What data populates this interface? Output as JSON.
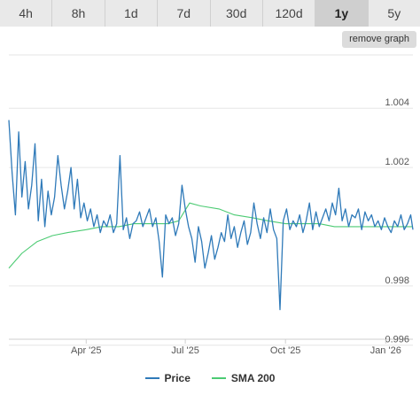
{
  "range_tabs": [
    {
      "label": "4h"
    },
    {
      "label": "8h"
    },
    {
      "label": "1d"
    },
    {
      "label": "7d"
    },
    {
      "label": "30d"
    },
    {
      "label": "120d"
    },
    {
      "label": "1y",
      "active": true
    },
    {
      "label": "5y"
    }
  ],
  "remove_graph_label": "remove graph",
  "colors": {
    "price": "#2f7ab9",
    "sma": "#4ccb73",
    "grid": "#e6e6e6",
    "tick_text": "#555555"
  },
  "chart_data": {
    "type": "line",
    "title": "",
    "xlabel": "",
    "ylabel": "",
    "ylim": [
      0.9962,
      1.0058
    ],
    "x_ticks": [
      {
        "date": "2025-04-01",
        "label": "Apr '25"
      },
      {
        "date": "2025-07-01",
        "label": "Jul '25"
      },
      {
        "date": "2025-10-01",
        "label": "Oct '25"
      },
      {
        "date": "2026-01-01",
        "label": "Jan '26"
      }
    ],
    "y_ticks": [
      {
        "value": 1.004,
        "label": "1.004"
      },
      {
        "value": 1.002,
        "label": "1.002"
      },
      {
        "value": 0.998,
        "label": "0.998"
      },
      {
        "value": 0.996,
        "label": "0.996"
      }
    ],
    "x_range": [
      "2025-01-20",
      "2026-01-26"
    ],
    "grid": true,
    "legend_position": "bottom",
    "series": [
      {
        "name": "Price",
        "x": [
          "2025-01-20",
          "2025-01-23",
          "2025-01-26",
          "2025-01-29",
          "2025-02-01",
          "2025-02-04",
          "2025-02-07",
          "2025-02-10",
          "2025-02-13",
          "2025-02-16",
          "2025-02-19",
          "2025-02-22",
          "2025-02-25",
          "2025-02-28",
          "2025-03-03",
          "2025-03-06",
          "2025-03-09",
          "2025-03-12",
          "2025-03-15",
          "2025-03-18",
          "2025-03-21",
          "2025-03-24",
          "2025-03-27",
          "2025-03-30",
          "2025-04-02",
          "2025-04-05",
          "2025-04-08",
          "2025-04-11",
          "2025-04-14",
          "2025-04-17",
          "2025-04-20",
          "2025-04-23",
          "2025-04-26",
          "2025-04-29",
          "2025-05-02",
          "2025-05-05",
          "2025-05-08",
          "2025-05-11",
          "2025-05-14",
          "2025-05-17",
          "2025-05-20",
          "2025-05-23",
          "2025-05-26",
          "2025-05-29",
          "2025-06-01",
          "2025-06-04",
          "2025-06-07",
          "2025-06-10",
          "2025-06-13",
          "2025-06-16",
          "2025-06-19",
          "2025-06-22",
          "2025-06-25",
          "2025-06-28",
          "2025-07-01",
          "2025-07-04",
          "2025-07-07",
          "2025-07-10",
          "2025-07-13",
          "2025-07-16",
          "2025-07-19",
          "2025-07-22",
          "2025-07-25",
          "2025-07-28",
          "2025-07-31",
          "2025-08-03",
          "2025-08-06",
          "2025-08-09",
          "2025-08-12",
          "2025-08-15",
          "2025-08-18",
          "2025-08-21",
          "2025-08-24",
          "2025-08-27",
          "2025-08-30",
          "2025-09-02",
          "2025-09-05",
          "2025-09-08",
          "2025-09-11",
          "2025-09-14",
          "2025-09-17",
          "2025-09-20",
          "2025-09-23",
          "2025-09-26",
          "2025-09-29",
          "2025-10-02",
          "2025-10-05",
          "2025-10-08",
          "2025-10-11",
          "2025-10-14",
          "2025-10-17",
          "2025-10-20",
          "2025-10-23",
          "2025-10-26",
          "2025-10-29",
          "2025-11-01",
          "2025-11-04",
          "2025-11-07",
          "2025-11-10",
          "2025-11-13",
          "2025-11-16",
          "2025-11-19",
          "2025-11-22",
          "2025-11-25",
          "2025-11-28",
          "2025-12-01",
          "2025-12-04",
          "2025-12-07",
          "2025-12-10",
          "2025-12-13",
          "2025-12-16",
          "2025-12-19",
          "2025-12-22",
          "2025-12-25",
          "2025-12-28",
          "2025-12-31",
          "2026-01-03",
          "2026-01-06",
          "2026-01-09",
          "2026-01-12",
          "2026-01-15",
          "2026-01-18",
          "2026-01-21",
          "2026-01-24",
          "2026-01-26"
        ],
        "y": [
          1.0036,
          1.0018,
          1.0004,
          1.0032,
          1.001,
          1.0022,
          1.0006,
          1.0014,
          1.0028,
          1.0002,
          1.0016,
          1.0,
          1.0012,
          1.0004,
          1.001,
          1.0024,
          1.0014,
          1.0006,
          1.0012,
          1.002,
          1.0006,
          1.0016,
          1.0003,
          1.0008,
          1.0002,
          1.0006,
          1.0,
          1.0004,
          0.9998,
          1.0002,
          1.0,
          1.0004,
          0.9998,
          1.0001,
          1.0024,
          0.9999,
          1.0003,
          0.9996,
          1.0001,
          1.0002,
          1.0005,
          1.0,
          1.0003,
          1.0006,
          1.0,
          1.0003,
          0.9995,
          0.9983,
          1.0004,
          1.0001,
          1.0003,
          0.9997,
          1.0001,
          1.0014,
          1.0006,
          1.0,
          0.9996,
          0.9988,
          1.0,
          0.9995,
          0.9986,
          0.9991,
          0.9997,
          0.9989,
          0.9993,
          0.9998,
          0.9995,
          1.0004,
          0.9996,
          1.0,
          0.9993,
          0.9998,
          1.0002,
          0.9994,
          0.9998,
          1.0008,
          1.0001,
          0.9996,
          1.0003,
          0.9998,
          1.0006,
          0.9999,
          0.9996,
          0.9972,
          1.0002,
          1.0006,
          0.9999,
          1.0002,
          1.0,
          1.0004,
          0.9998,
          1.0002,
          1.0008,
          0.9999,
          1.0005,
          1.0,
          1.0003,
          1.0006,
          1.0002,
          1.0008,
          1.0004,
          1.0013,
          1.0002,
          1.0006,
          1.0,
          1.0004,
          1.0003,
          1.0006,
          0.9999,
          1.0005,
          1.0002,
          1.0004,
          1.0,
          1.0002,
          0.9999,
          1.0003,
          1.0,
          0.9998,
          1.0002,
          1.0,
          1.0004,
          0.9999,
          1.0001,
          1.0004,
          0.9999
        ]
      },
      {
        "name": "SMA 200",
        "x": [
          "2025-01-20",
          "2025-02-01",
          "2025-02-15",
          "2025-03-01",
          "2025-03-15",
          "2025-04-01",
          "2025-04-15",
          "2025-05-01",
          "2025-05-15",
          "2025-06-01",
          "2025-06-15",
          "2025-06-25",
          "2025-07-05",
          "2025-07-15",
          "2025-08-01",
          "2025-08-15",
          "2025-09-01",
          "2025-09-15",
          "2025-10-01",
          "2025-10-15",
          "2025-11-01",
          "2025-11-15",
          "2025-12-01",
          "2025-12-15",
          "2026-01-01",
          "2026-01-15",
          "2026-01-26"
        ],
        "y": [
          0.9986,
          0.9991,
          0.9995,
          0.9997,
          0.9998,
          0.9999,
          1.0,
          1.0,
          1.0001,
          1.0001,
          1.0001,
          1.0002,
          1.0008,
          1.0007,
          1.0006,
          1.0004,
          1.0003,
          1.0002,
          1.0001,
          1.0001,
          1.0001,
          1.0,
          1.0,
          1.0,
          1.0,
          1.0,
          1.0
        ]
      }
    ]
  }
}
